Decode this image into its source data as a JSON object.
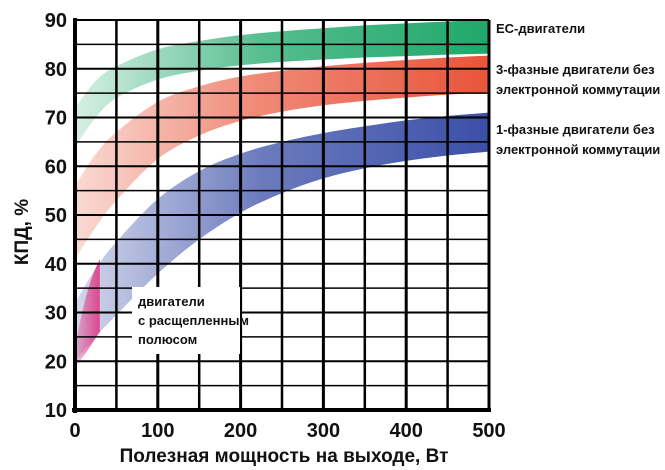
{
  "chart_data": {
    "type": "area",
    "title": "",
    "xlabel": "Полезная мощность на выходе, Вт",
    "ylabel": "КПД, %",
    "xlim": [
      0,
      500
    ],
    "ylim": [
      10,
      90
    ],
    "x_ticks": [
      0,
      100,
      200,
      300,
      400,
      500
    ],
    "y_ticks": [
      10,
      20,
      30,
      40,
      50,
      60,
      70,
      80,
      90
    ],
    "grid": true,
    "series": [
      {
        "name": "EC-двигатели",
        "label_lines": [
          "EC-двигатели"
        ],
        "color": "#1fa86a",
        "x": [
          0,
          25,
          50,
          100,
          150,
          200,
          250,
          300,
          350,
          400,
          450,
          500
        ],
        "upper": [
          72,
          77.5,
          80.5,
          84,
          85.7,
          86.9,
          87.7,
          88.3,
          88.9,
          89.3,
          89.7,
          90
        ],
        "lower": [
          64,
          70,
          74,
          77.8,
          79.6,
          80.7,
          81.4,
          81.9,
          82.3,
          82.6,
          82.9,
          83.1
        ]
      },
      {
        "name": "3-фазные двигатели без электронной коммутации",
        "label_lines": [
          "3-фазные двигатели без",
          "электронной коммутации"
        ],
        "color": "#e8553a",
        "x": [
          0,
          25,
          50,
          100,
          150,
          200,
          250,
          300,
          350,
          400,
          450,
          500
        ],
        "upper": [
          56,
          62.5,
          67,
          73.2,
          76.4,
          78.4,
          79.6,
          80.5,
          81.2,
          81.8,
          82.3,
          82.7
        ],
        "lower": [
          41,
          47.5,
          53,
          61.5,
          66.3,
          69.3,
          71.2,
          72.5,
          73.4,
          74.1,
          74.7,
          75.2
        ]
      },
      {
        "name": "1-фазные двигатели без электронной коммутации",
        "label_lines": [
          "1-фазные двигатели без",
          "электронной коммутации"
        ],
        "color": "#3b4fa8",
        "x": [
          0,
          25,
          50,
          100,
          150,
          200,
          250,
          300,
          350,
          400,
          450,
          500
        ],
        "upper": [
          32,
          39,
          44.5,
          53.3,
          59,
          62.6,
          65,
          66.8,
          68.2,
          69.4,
          70.3,
          71
        ],
        "lower": [
          20,
          25,
          29.5,
          38,
          45,
          50.5,
          54.5,
          57.5,
          59.6,
          61.1,
          62.2,
          63
        ]
      },
      {
        "name": "двигатели с расщепленным полюсом",
        "label_lines": [
          "двигатели",
          "с расщепленным",
          "полюсом"
        ],
        "color": "#e0408a",
        "x": [
          0,
          10,
          20,
          30
        ],
        "upper": [
          23,
          31,
          37,
          41
        ],
        "lower": [
          19,
          21,
          23.5,
          26
        ]
      }
    ]
  }
}
